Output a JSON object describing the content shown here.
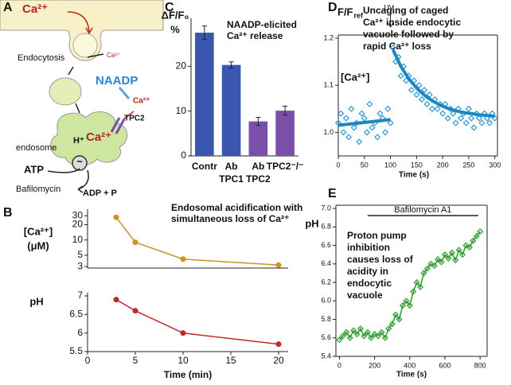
{
  "diagram": {
    "panel": "A",
    "labels": {
      "ca_top": "Ca²⁺",
      "endocytosis": "Endocytosis",
      "ca_small": "Ca²⁺",
      "naadp": "NAADP",
      "ca_release": "Ca²⁺",
      "tpc2": "TPC2",
      "h": "H⁺",
      "ca_endosome": "Ca²⁺",
      "endosome": "endosome",
      "tilde": "~",
      "atp": "ATP",
      "bafilomycin": "Bafilomycin",
      "adp": "ADP + P"
    }
  },
  "chart_data": [
    {
      "panel": "B",
      "type": "line",
      "title": [
        "Endosomal acidification with",
        "simultaneous loss of Ca²⁺"
      ],
      "ylabel": [
        "[Ca²⁺]",
        "(μM)"
      ],
      "x": [
        3,
        5,
        10,
        20
      ],
      "series": [
        {
          "color": "#c8961e",
          "values": [
            28,
            9,
            4.2,
            3.2
          ]
        }
      ],
      "xlim": [
        0,
        21
      ],
      "ylim": [
        2.8,
        35
      ],
      "yscale": "log",
      "yticks": [
        3,
        5,
        10,
        20,
        30
      ]
    },
    {
      "type": "line",
      "ylabel": [
        "pH"
      ],
      "xlabel": "Time (min)",
      "x": [
        3,
        5,
        10,
        20
      ],
      "series": [
        {
          "color": "#c0282a",
          "values": [
            6.9,
            6.6,
            6.0,
            5.7
          ]
        }
      ],
      "xlim": [
        0,
        21
      ],
      "ylim": [
        5.5,
        7
      ],
      "yticks": [
        5.5,
        6,
        6.5,
        7
      ],
      "xticks": [
        0,
        5,
        10,
        15,
        20
      ]
    },
    {
      "panel": "C",
      "type": "bar",
      "title": [
        "NAADP-elicited",
        "Ca²⁺ release"
      ],
      "ylabel": [
        "ΔF/F₀",
        "%"
      ],
      "categories": [
        [
          "Contr"
        ],
        [
          "Ab",
          "TPC1"
        ],
        [
          "Ab",
          "TPC2"
        ],
        [
          "TPC2⁻/⁻"
        ]
      ],
      "values": [
        27.5,
        20.3,
        7.7,
        10.1
      ],
      "errors": [
        1.5,
        0.7,
        0.9,
        1.0
      ],
      "colors": [
        "#3a57b0",
        "#3a57b0",
        "#7b4fa8",
        "#7b4fa8"
      ],
      "ylim": [
        0,
        30
      ],
      "yticks": [
        0,
        10,
        20
      ]
    },
    {
      "panel": "D",
      "type": "scatter",
      "ylabel": [
        "F/F",
        "ref"
      ],
      "xlabel": "Time (s)",
      "inset_label": "[Ca²⁺]",
      "annotation": [
        "Uncaging of caged",
        "Ca²⁺ inside endocytic",
        "vacuole followed by",
        "rapid Ca²⁺ loss"
      ],
      "event": {
        "label": "UV",
        "x": 100
      },
      "series": [
        {
          "style": "markers",
          "color": "#2f9ad6",
          "x": [
            0,
            5,
            10,
            15,
            20,
            25,
            30,
            35,
            40,
            45,
            50,
            55,
            60,
            65,
            70,
            75,
            80,
            85,
            90,
            95,
            100,
            105,
            110,
            115,
            120,
            125,
            130,
            135,
            140,
            145,
            150,
            155,
            160,
            165,
            170,
            175,
            180,
            185,
            190,
            195,
            200,
            205,
            210,
            215,
            220,
            225,
            230,
            235,
            240,
            245,
            250,
            255,
            260,
            265,
            270,
            275,
            280,
            285,
            290,
            295,
            300
          ],
          "values": [
            1.02,
            1.04,
            1.0,
            1.03,
            0.99,
            1.05,
            1.01,
            1.02,
            0.98,
            1.04,
            1.03,
            1.0,
            1.06,
            1.01,
            1.02,
            0.99,
            1.04,
            1.03,
            1.0,
            1.05,
            1.02,
            1.18,
            1.15,
            1.16,
            1.12,
            1.14,
            1.11,
            1.12,
            1.09,
            1.11,
            1.08,
            1.1,
            1.07,
            1.09,
            1.06,
            1.08,
            1.05,
            1.07,
            1.05,
            1.06,
            1.04,
            1.06,
            1.03,
            1.05,
            1.04,
            1.02,
            1.05,
            1.03,
            1.04,
            1.02,
            1.05,
            1.03,
            1.01,
            1.04,
            1.03,
            1.02,
            1.04,
            1.03,
            1.02,
            1.04,
            1.03
          ]
        },
        {
          "style": "line",
          "color": "#1f86c4",
          "x": [
            0,
            100
          ],
          "values": [
            1.015,
            1.027
          ]
        },
        {
          "style": "line",
          "color": "#1f86c4",
          "x": [
            105,
            120,
            135,
            150,
            165,
            180,
            195,
            210,
            225,
            240,
            255,
            270,
            285,
            300
          ],
          "values": [
            1.175,
            1.14,
            1.114,
            1.094,
            1.079,
            1.067,
            1.058,
            1.051,
            1.046,
            1.042,
            1.04,
            1.037,
            1.036,
            1.034
          ]
        }
      ],
      "xlim": [
        0,
        305
      ],
      "ylim": [
        0.95,
        1.2
      ],
      "xticks": [
        0,
        50,
        100,
        150,
        200,
        250,
        300
      ],
      "yticks": [
        {
          "value": 1,
          "label": "1.0"
        },
        1.1,
        1.2
      ]
    },
    {
      "panel": "E",
      "type": "line",
      "ylabel": [
        "pH"
      ],
      "xlabel": "Time (s)",
      "annotation": [
        "Proton pump",
        "inhibition",
        "causes loss of",
        "acidity in",
        "endocytic",
        "vacuole"
      ],
      "treatment": {
        "label": "Bafilomycin A1",
        "x": [
          160,
          790
        ]
      },
      "x": [
        0,
        20,
        40,
        60,
        80,
        100,
        120,
        140,
        160,
        180,
        200,
        220,
        240,
        260,
        280,
        300,
        320,
        340,
        360,
        380,
        400,
        420,
        440,
        460,
        480,
        500,
        520,
        540,
        560,
        580,
        600,
        620,
        640,
        660,
        680,
        700,
        720,
        740,
        760,
        780,
        800
      ],
      "series": [
        {
          "style": "line+markers",
          "color": "#2e9a2e",
          "values": [
            5.58,
            5.62,
            5.66,
            5.6,
            5.68,
            5.64,
            5.7,
            5.62,
            5.66,
            5.6,
            5.64,
            5.62,
            5.66,
            5.6,
            5.7,
            5.75,
            5.85,
            5.8,
            5.95,
            6.0,
            5.95,
            6.1,
            6.2,
            6.15,
            6.3,
            6.35,
            6.4,
            6.38,
            6.45,
            6.42,
            6.5,
            6.46,
            6.52,
            6.44,
            6.55,
            6.5,
            6.6,
            6.58,
            6.65,
            6.7,
            6.75
          ]
        }
      ],
      "xlim": [
        -20,
        840
      ],
      "ylim": [
        5.4,
        7.0
      ],
      "xticks": [
        0,
        200,
        400,
        600,
        800
      ],
      "yticks": [
        5.4,
        5.6,
        5.8,
        {
          "value": 6,
          "label": "6.0"
        },
        6.2,
        6.4,
        6.6,
        6.8,
        {
          "value": 7,
          "label": "7.0"
        }
      ]
    }
  ]
}
